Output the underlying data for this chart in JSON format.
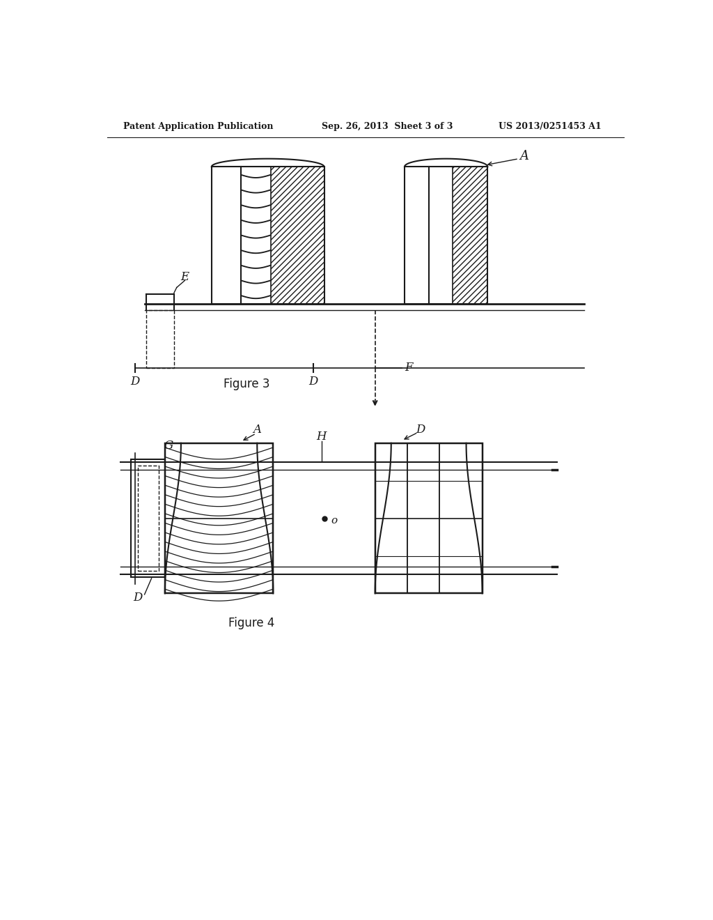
{
  "header_left": "Patent Application Publication",
  "header_mid": "Sep. 26, 2013  Sheet 3 of 3",
  "header_right": "US 2013/0251453 A1",
  "bg_color": "#ffffff",
  "line_color": "#1a1a1a",
  "fig3_label": "Figure 3",
  "fig4_label": "Figure 4",
  "label_A": "A",
  "label_D": "D",
  "label_E": "E",
  "label_F": "F",
  "label_G": "G",
  "label_H": "H",
  "label_O": "o"
}
